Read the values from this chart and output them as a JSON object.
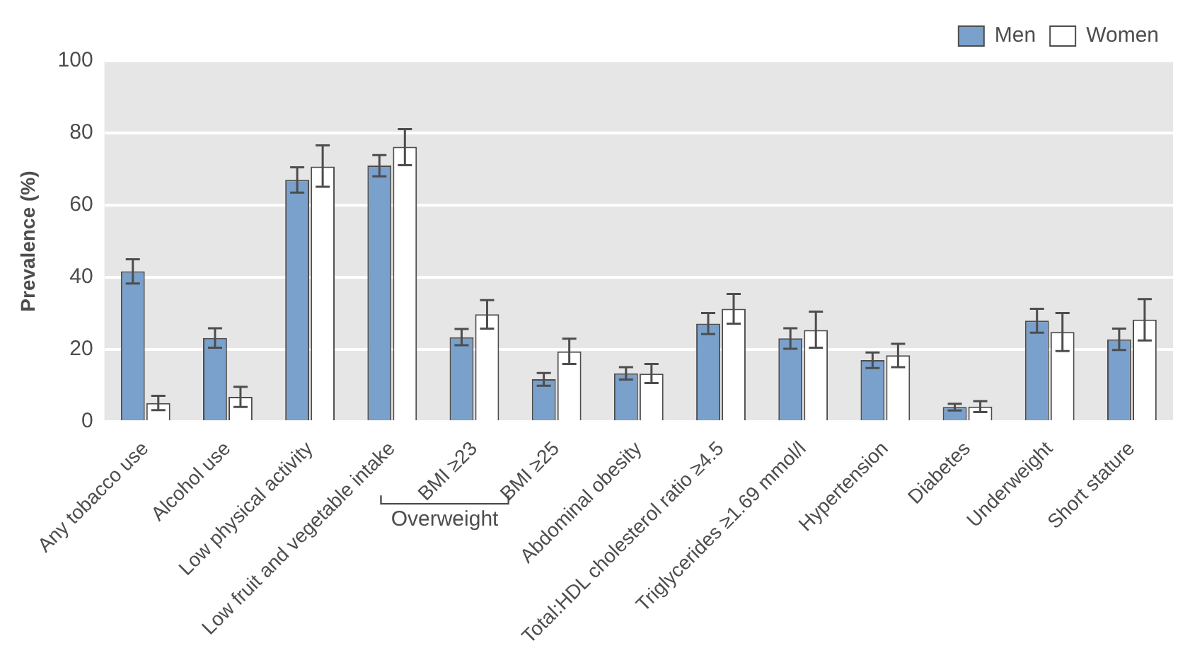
{
  "chart_data": {
    "type": "bar",
    "ylabel": "Prevalence (%)",
    "categories": [
      "Any tobacco use",
      "Alcohol use",
      "Low physical activity",
      "Low fruit and vegetable intake",
      "BMI ≥23",
      "BMI ≥25",
      "Abdominal obesity",
      "Total:HDL cholesterol ratio ≥4.5",
      "Triglycerides ≥1.69 mmol/l",
      "Hypertension",
      "Diabetes",
      "Underweight",
      "Short stature"
    ],
    "series": [
      {
        "name": "Men",
        "color": "#7aa0cc",
        "values": [
          41.7,
          23.2,
          67.0,
          71.0,
          23.4,
          11.8,
          13.4,
          27.2,
          23.1,
          17.1,
          4.1,
          28.0,
          22.8
        ],
        "errors": [
          [
            38.3,
            45.0
          ],
          [
            20.5,
            25.9
          ],
          [
            63.5,
            70.5
          ],
          [
            68.0,
            73.9
          ],
          [
            21.2,
            25.7
          ],
          [
            10.0,
            13.5
          ],
          [
            11.7,
            15.1
          ],
          [
            24.3,
            30.1
          ],
          [
            20.2,
            25.9
          ],
          [
            14.9,
            19.2
          ],
          [
            3.1,
            5.0
          ],
          [
            24.7,
            31.3
          ],
          [
            19.9,
            25.8
          ]
        ]
      },
      {
        "name": "Women",
        "color": "#ffffff",
        "values": [
          5.2,
          6.9,
          70.7,
          76.2,
          29.8,
          19.5,
          13.3,
          31.3,
          25.4,
          18.4,
          4.2,
          24.9,
          28.3
        ],
        "errors": [
          [
            3.2,
            7.2
          ],
          [
            4.1,
            9.7
          ],
          [
            65.1,
            76.6
          ],
          [
            71.1,
            81.1
          ],
          [
            25.8,
            33.7
          ],
          [
            16.0,
            23.0
          ],
          [
            10.7,
            16.0
          ],
          [
            27.2,
            35.4
          ],
          [
            20.5,
            30.5
          ],
          [
            15.1,
            21.6
          ],
          [
            2.7,
            5.7
          ],
          [
            19.6,
            30.1
          ],
          [
            22.5,
            34.0
          ]
        ]
      }
    ],
    "annotations": [
      "Overweight"
    ],
    "ylim": [
      0,
      100
    ],
    "yticks": [
      0,
      20,
      40,
      60,
      80,
      100
    ],
    "grid": "y",
    "legend": "top right"
  }
}
